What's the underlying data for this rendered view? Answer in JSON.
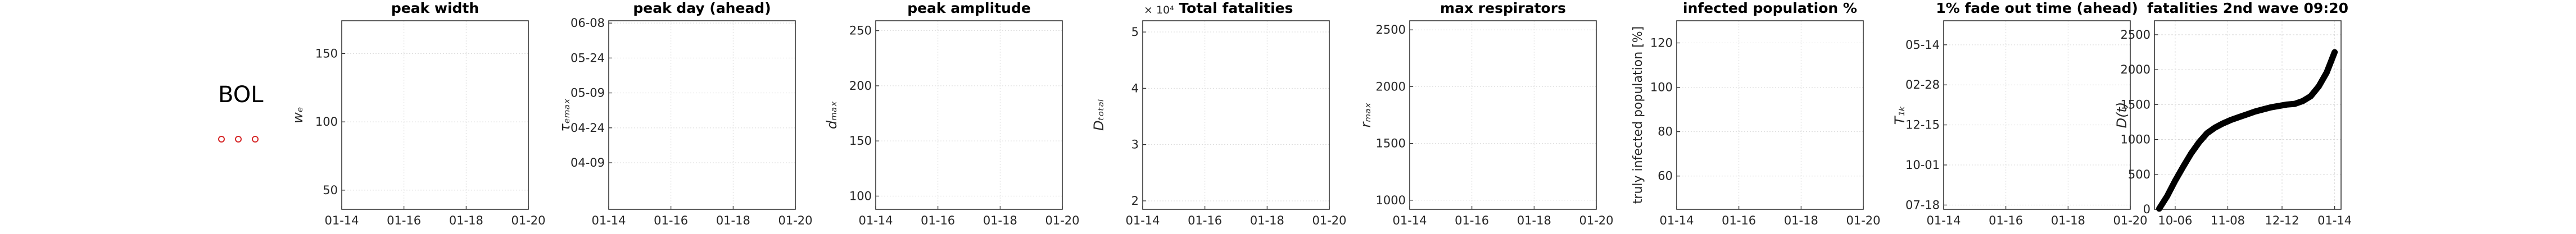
{
  "country_label": "BOL",
  "marker_color": "#d62728",
  "line_color": "#000000",
  "charts": [
    {
      "title": "peak width",
      "ylabel": "wₑ",
      "y_ticks": [
        "50",
        "100",
        "150"
      ],
      "y_tick_values": [
        50,
        100,
        150
      ],
      "ylim": [
        36,
        174
      ],
      "x_ticks": [
        "01-14",
        "01-16",
        "01-18",
        "01-20"
      ],
      "x_tick_values": [
        0,
        1,
        2,
        3
      ],
      "xlim": [
        0,
        3
      ],
      "multiplier": ""
    },
    {
      "title": "peak day (ahead)",
      "ylabel": "τₑₘₐₓ",
      "y_ticks": [
        "04-09",
        "04-24",
        "05-09",
        "05-24",
        "06-08"
      ],
      "y_tick_values": [
        0,
        15,
        30,
        45,
        60
      ],
      "ylim": [
        -20,
        61
      ],
      "x_ticks": [
        "01-14",
        "01-16",
        "01-18",
        "01-20"
      ],
      "x_tick_values": [
        0,
        1,
        2,
        3
      ],
      "xlim": [
        0,
        3
      ],
      "multiplier": ""
    },
    {
      "title": "peak amplitude",
      "ylabel": "dₘₐₓ",
      "y_ticks": [
        "100",
        "150",
        "200",
        "250"
      ],
      "y_tick_values": [
        100,
        150,
        200,
        250
      ],
      "ylim": [
        88,
        259
      ],
      "x_ticks": [
        "01-14",
        "01-16",
        "01-18",
        "01-20"
      ],
      "x_tick_values": [
        0,
        1,
        2,
        3
      ],
      "xlim": [
        0,
        3
      ],
      "multiplier": ""
    },
    {
      "title": "Total fatalities",
      "ylabel": "Dₜₒₜₐₗ",
      "y_ticks": [
        "2",
        "3",
        "4",
        "5"
      ],
      "y_tick_values": [
        2,
        3,
        4,
        5
      ],
      "ylim": [
        1.85,
        5.2
      ],
      "x_ticks": [
        "01-14",
        "01-16",
        "01-18",
        "01-20"
      ],
      "x_tick_values": [
        0,
        1,
        2,
        3
      ],
      "xlim": [
        0,
        3
      ],
      "multiplier": "× 10⁴"
    },
    {
      "title": "max respirators",
      "ylabel": "rₘₐₓ",
      "y_ticks": [
        "1000",
        "1500",
        "2000",
        "2500"
      ],
      "y_tick_values": [
        1000,
        1500,
        2000,
        2500
      ],
      "ylim": [
        920,
        2580
      ],
      "x_ticks": [
        "01-14",
        "01-16",
        "01-18",
        "01-20"
      ],
      "x_tick_values": [
        0,
        1,
        2,
        3
      ],
      "xlim": [
        0,
        3
      ],
      "multiplier": ""
    },
    {
      "title": "infected population %",
      "ylabel": "truly infected population [%]",
      "y_ticks": [
        "60",
        "80",
        "100",
        "120"
      ],
      "y_tick_values": [
        60,
        80,
        100,
        120
      ],
      "ylim": [
        45,
        130
      ],
      "x_ticks": [
        "01-14",
        "01-16",
        "01-18",
        "01-20"
      ],
      "x_tick_values": [
        0,
        1,
        2,
        3
      ],
      "xlim": [
        0,
        3
      ],
      "multiplier": ""
    },
    {
      "title": "1% fade out time (ahead)",
      "ylabel": "T₁ₖ",
      "y_ticks": [
        "07-18",
        "10-01",
        "12-15",
        "02-28",
        "05-14"
      ],
      "y_tick_values": [
        0,
        75,
        150,
        225,
        300
      ],
      "ylim": [
        -8,
        345
      ],
      "x_ticks": [
        "01-14",
        "01-16",
        "01-18",
        "01-20"
      ],
      "x_tick_values": [
        0,
        1,
        2,
        3
      ],
      "xlim": [
        0,
        3
      ],
      "multiplier": ""
    }
  ],
  "chart_data": {
    "type": "line",
    "title": "fatalities 2nd wave 09:20",
    "ylabel": "D(t)",
    "x_ticks": [
      "10-06",
      "11-08",
      "12-12",
      "01-14"
    ],
    "x_tick_values": [
      0,
      33,
      67,
      100
    ],
    "xlim": [
      -13,
      104
    ],
    "ylim": [
      0,
      2700
    ],
    "y_ticks": [
      "0",
      "500",
      "1000",
      "1500",
      "2000",
      "2500"
    ],
    "y_tick_values": [
      0,
      500,
      1000,
      1500,
      2000,
      2500
    ],
    "series": [
      {
        "x": [
          -10,
          -5,
          0,
          5,
          10,
          15,
          20,
          25,
          30,
          35,
          40,
          45,
          50,
          55,
          60,
          65,
          70,
          75,
          80,
          85,
          90,
          95,
          100
        ],
        "values": [
          10,
          190,
          410,
          610,
          800,
          960,
          1090,
          1170,
          1230,
          1280,
          1320,
          1360,
          1400,
          1430,
          1460,
          1480,
          1500,
          1510,
          1550,
          1620,
          1760,
          1960,
          2250
        ]
      }
    ]
  }
}
